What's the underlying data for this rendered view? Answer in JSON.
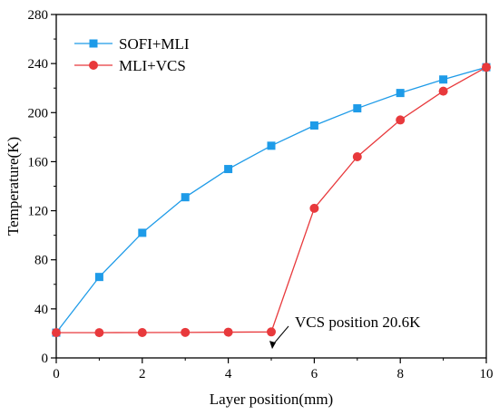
{
  "chart_data": {
    "type": "line",
    "xlabel": "Layer position(mm)",
    "ylabel": "Temperature(K)",
    "xlim": [
      0,
      10
    ],
    "ylim": [
      0,
      280
    ],
    "xticks": [
      0,
      2,
      4,
      6,
      8,
      10
    ],
    "yticks": [
      0,
      40,
      80,
      120,
      160,
      200,
      240,
      280
    ],
    "grid": false,
    "legend_position": "top-left",
    "x": [
      0,
      1,
      2,
      3,
      4,
      5,
      6,
      7,
      8,
      9,
      10
    ],
    "series": [
      {
        "name": "SOFI+MLI",
        "color": "#1e9be8",
        "marker": "square",
        "values": [
          20.6,
          66,
          102,
          131,
          154,
          173,
          189.5,
          203.5,
          216,
          227,
          237
        ]
      },
      {
        "name": "MLI+VCS",
        "color": "#e8393c",
        "marker": "circle",
        "values": [
          20.6,
          20.6,
          20.7,
          20.8,
          21,
          21.2,
          122,
          164,
          194,
          217.5,
          237
        ]
      }
    ],
    "annotations": [
      {
        "text": "VCS position   20.6K",
        "points_to": {
          "x": 5,
          "y": 20.6
        }
      }
    ]
  }
}
